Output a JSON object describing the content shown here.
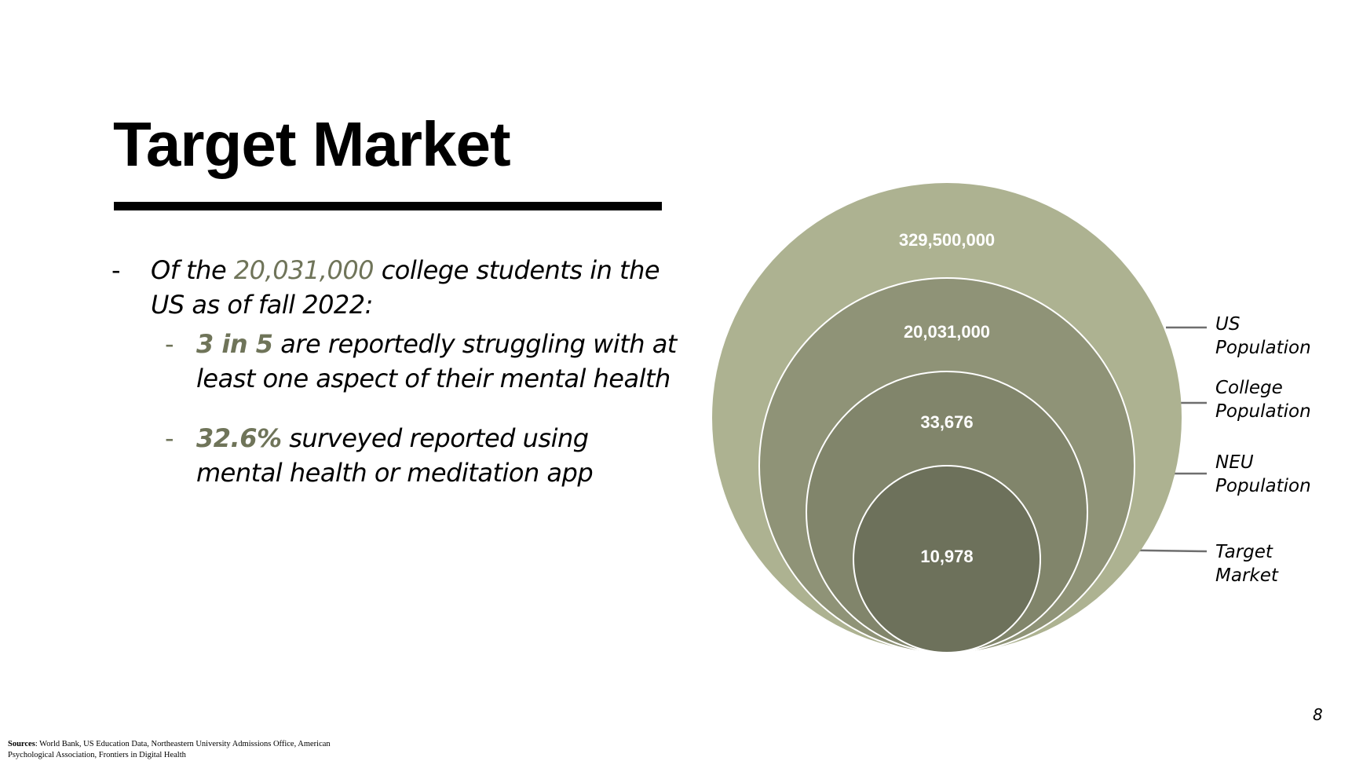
{
  "slide": {
    "title": "Target Market",
    "page_number": "8"
  },
  "bullets": {
    "main": {
      "prefix": "Of the ",
      "highlight": "20,031,000",
      "suffix": " college students in the US as of fall 2022:"
    },
    "sub": [
      {
        "highlight": "3 in 5",
        "text": " are reportedly struggling with at least one aspect of their mental health"
      },
      {
        "highlight": "32.6%",
        "text": " surveyed reported using mental health or meditation app"
      }
    ]
  },
  "diagram": {
    "circles": [
      {
        "label": "US Population",
        "label_lines": [
          "US",
          "Population"
        ],
        "value": "329,500,000",
        "color": "#adb291"
      },
      {
        "label": "College Population",
        "label_lines": [
          "College",
          "Population"
        ],
        "value": "20,031,000",
        "color": "#8f9377"
      },
      {
        "label": "NEU Population",
        "label_lines": [
          "NEU",
          "Population"
        ],
        "value": "33,676",
        "color": "#81856b"
      },
      {
        "label": "Target Market",
        "label_lines": [
          "Target",
          "Market"
        ],
        "value": "10,978",
        "color": "#6d715b"
      }
    ],
    "connector_color": "#6e6e6e"
  },
  "sources": {
    "label": "Sources",
    "text": ": World Bank, US Education Data, Northeastern University Admissions Office, American Psychological Association, Frontiers in Digital Health"
  }
}
